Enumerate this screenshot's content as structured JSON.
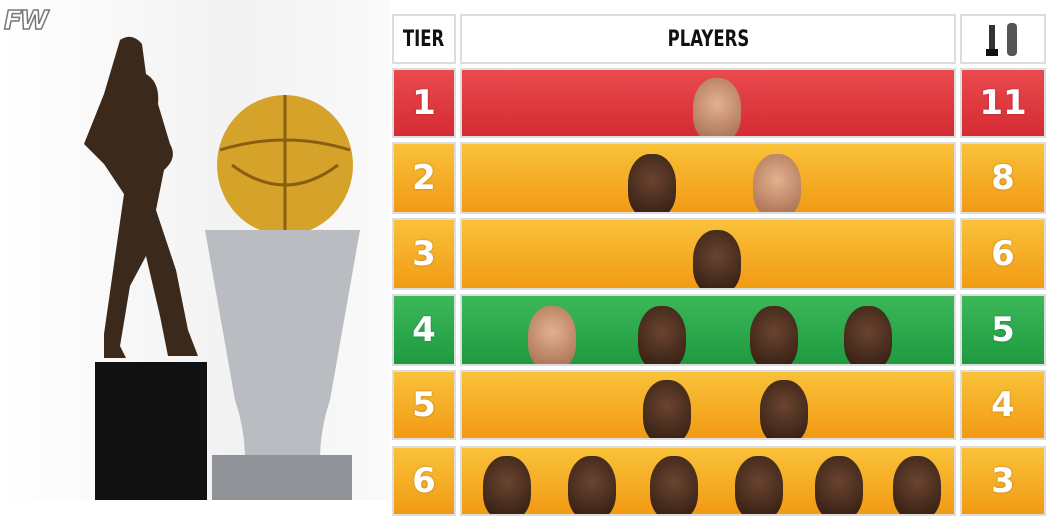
{
  "watermark": "FW",
  "header": {
    "tier": "TIER",
    "players": "PLAYERS",
    "count_icon": "mvp-and-finals-trophy-icons"
  },
  "tiers": [
    {
      "tier": "1",
      "count": "11",
      "color": "#d9323a",
      "players": 1
    },
    {
      "tier": "2",
      "count": "8",
      "color": "#f4a81a",
      "players": 2
    },
    {
      "tier": "3",
      "count": "6",
      "color": "#f4a81a",
      "players": 1
    },
    {
      "tier": "4",
      "count": "5",
      "color": "#2aa24a",
      "players": 4
    },
    {
      "tier": "5",
      "count": "4",
      "color": "#f4a81a",
      "players": 2
    },
    {
      "tier": "6",
      "count": "3",
      "color": "#f4a81a",
      "players": 6
    }
  ]
}
